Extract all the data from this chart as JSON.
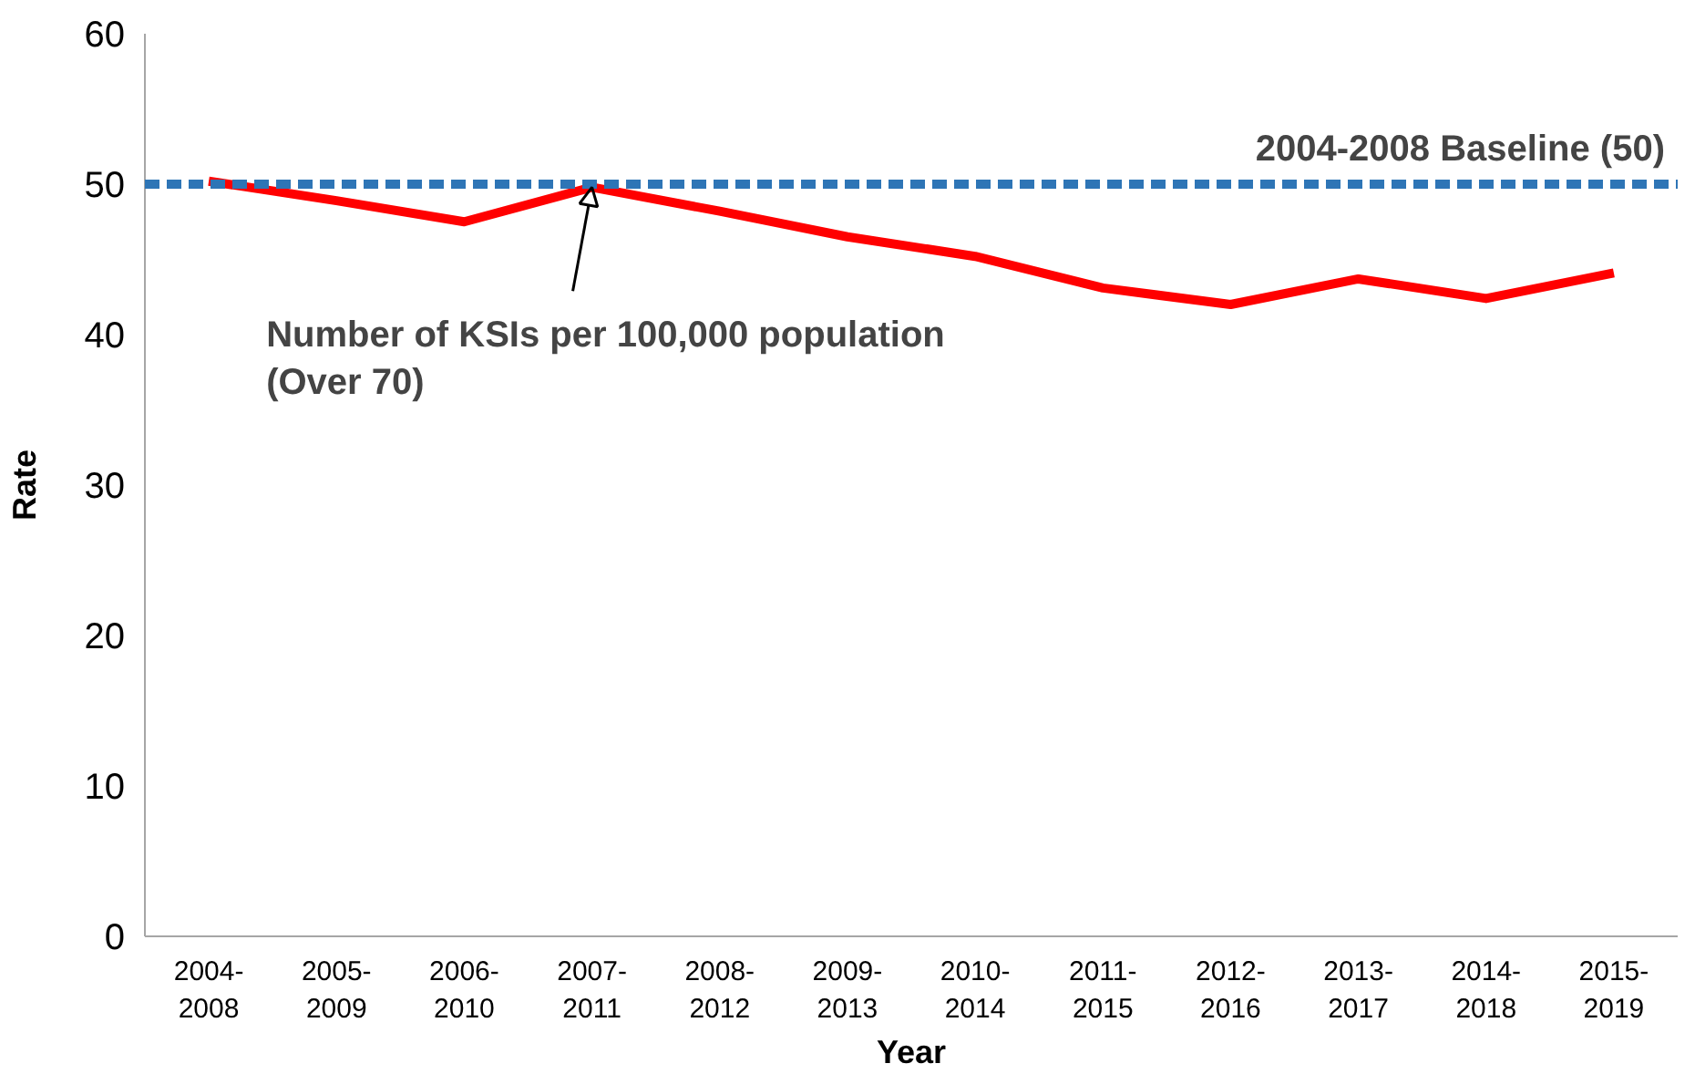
{
  "chart_data": {
    "type": "line",
    "xlabel": "Year",
    "ylabel": "Rate",
    "categories": [
      "2004-2008",
      "2005-2009",
      "2006-2010",
      "2007-2011",
      "2008-2012",
      "2009-2013",
      "2010-2014",
      "2011-2015",
      "2012-2016",
      "2013-2017",
      "2014-2018",
      "2015-2019"
    ],
    "series": [
      {
        "color": "#ff0000",
        "values": [
          50.2,
          48.9,
          47.5,
          49.8,
          48.2,
          46.5,
          45.2,
          43.1,
          42.0,
          43.7,
          42.4,
          44.1
        ]
      }
    ],
    "ylim": [
      0,
      60
    ],
    "yticks": [
      0,
      10,
      20,
      30,
      40,
      50,
      60
    ],
    "grid": false,
    "marker": "none",
    "line_style": "solid",
    "ref_lines": [
      {
        "axis": "y",
        "value": 50,
        "label": "2004-2008 Baseline (50)",
        "color": "#2e75b6",
        "line_style": "dashed"
      }
    ],
    "annotations": [
      {
        "text": "Number of KSIs per 100,000 population (Over 70)",
        "x": "2007-2011",
        "y": 49.8
      }
    ]
  }
}
